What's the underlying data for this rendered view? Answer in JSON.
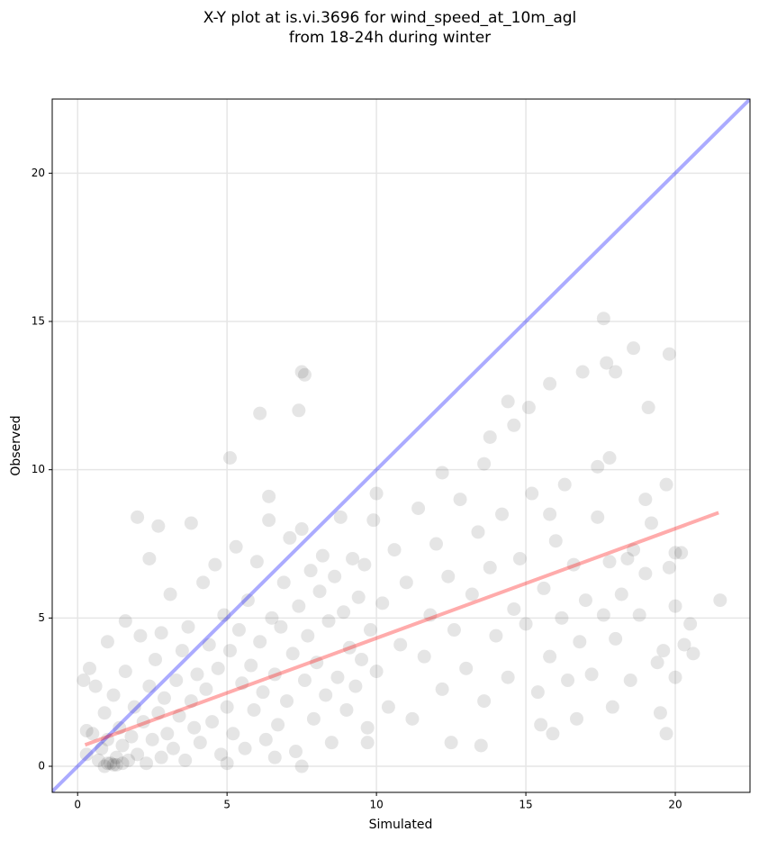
{
  "chart_data": {
    "type": "scatter",
    "title": [
      "X-Y plot at is.vi.3696 for wind_speed_at_10m_agl",
      "from 18-24h during winter"
    ],
    "xlabel": "Simulated",
    "ylabel": "Observed",
    "xlim": [
      -0.85,
      22.5
    ],
    "ylim": [
      -0.88,
      22.5
    ],
    "xticks": [
      0,
      5,
      10,
      15,
      20
    ],
    "yticks": [
      0,
      5,
      10,
      15,
      20
    ],
    "grid": true,
    "color": "#000000",
    "x": [
      0.3,
      0.5,
      0.7,
      0.8,
      0.9,
      1.0,
      1.1,
      1.2,
      1.3,
      1.4,
      1.5,
      1.6,
      1.7,
      1.8,
      1.9,
      2.0,
      2.1,
      2.2,
      2.3,
      2.4,
      2.5,
      2.6,
      2.7,
      2.8,
      2.9,
      3.0,
      3.1,
      3.2,
      3.3,
      3.4,
      3.5,
      3.6,
      3.7,
      3.8,
      3.9,
      4.0,
      0.2,
      0.4,
      0.6,
      1.0,
      1.6,
      2.8,
      0.3,
      1.2,
      0.9,
      4.1,
      4.2,
      4.3,
      4.4,
      4.5,
      4.6,
      4.7,
      4.8,
      4.9,
      5.0,
      5.1,
      5.2,
      5.3,
      5.4,
      5.5,
      5.6,
      5.7,
      5.8,
      5.9,
      6.0,
      6.1,
      6.2,
      6.3,
      6.4,
      6.5,
      6.6,
      6.7,
      6.8,
      6.9,
      7.0,
      7.1,
      7.2,
      7.3,
      7.4,
      7.5,
      7.6,
      7.7,
      7.8,
      7.9,
      8.0,
      8.1,
      8.2,
      8.3,
      8.4,
      8.5,
      8.6,
      8.7,
      8.8,
      8.9,
      9.0,
      9.1,
      9.2,
      9.3,
      9.4,
      9.5,
      9.6,
      9.7,
      9.8,
      9.9,
      10.0,
      10.2,
      10.4,
      10.6,
      10.8,
      11.0,
      11.2,
      11.4,
      11.6,
      11.8,
      12.0,
      12.2,
      12.4,
      12.6,
      12.8,
      13.0,
      13.2,
      13.4,
      13.6,
      13.8,
      14.0,
      14.2,
      14.4,
      14.6,
      14.8,
      15.0,
      15.2,
      15.4,
      15.6,
      15.8,
      16.0,
      16.2,
      16.4,
      16.6,
      16.8,
      17.0,
      17.2,
      17.4,
      17.6,
      17.8,
      18.0,
      18.2,
      18.4,
      18.8,
      19.0,
      19.4,
      19.6,
      19.8,
      20.0,
      20.0,
      20.2,
      20.5,
      19.2,
      18.5,
      7.5,
      7.6,
      6.1,
      7.4,
      5.1,
      17.6,
      18.6,
      19.8,
      16.9,
      17.7,
      18.0,
      15.8,
      14.4,
      15.1,
      19.1,
      21.5,
      20.6,
      20.3,
      19.7,
      19.5,
      17.9,
      2.0,
      2.7,
      3.8,
      2.4,
      6.4,
      10.0,
      14.6,
      13.8,
      12.2,
      13.6,
      17.4,
      17.8,
      20.0,
      19.7,
      19.0,
      18.6,
      16.3,
      15.8,
      16.7,
      15.9,
      15.5,
      12.5,
      13.5,
      9.7,
      7.5,
      6.6,
      5.0,
      1.0,
      1.3,
      1.5
    ],
    "values": [
      0.4,
      1.1,
      0.2,
      0.6,
      1.8,
      0.9,
      0.1,
      2.4,
      0.3,
      1.3,
      0.7,
      3.2,
      0.2,
      1.0,
      2.0,
      0.4,
      4.4,
      1.5,
      0.1,
      2.7,
      0.9,
      3.6,
      1.8,
      0.3,
      2.3,
      1.1,
      5.8,
      0.6,
      2.9,
      1.7,
      3.9,
      0.2,
      4.7,
      2.2,
      1.3,
      3.1,
      2.9,
      3.3,
      2.7,
      4.2,
      4.9,
      4.5,
      1.2,
      0.05,
      0.0,
      0.8,
      6.2,
      2.6,
      4.1,
      1.5,
      6.8,
      3.3,
      0.4,
      5.1,
      2.0,
      3.9,
      1.1,
      7.4,
      4.6,
      2.8,
      0.6,
      5.6,
      3.4,
      1.9,
      6.9,
      4.2,
      2.5,
      0.9,
      8.3,
      5.0,
      3.1,
      1.4,
      4.7,
      6.2,
      2.2,
      7.7,
      3.8,
      0.5,
      5.4,
      8.0,
      2.9,
      4.4,
      6.6,
      1.6,
      3.5,
      5.9,
      7.1,
      2.4,
      4.9,
      0.8,
      6.4,
      3.0,
      8.4,
      5.2,
      1.9,
      4.0,
      7.0,
      2.7,
      5.7,
      3.6,
      6.8,
      1.3,
      4.6,
      8.3,
      3.2,
      5.5,
      2.0,
      7.3,
      4.1,
      6.2,
      1.6,
      8.7,
      3.7,
      5.1,
      7.5,
      2.6,
      6.4,
      4.6,
      9.0,
      3.3,
      5.8,
      7.9,
      2.2,
      6.7,
      4.4,
      8.5,
      3.0,
      5.3,
      7.0,
      4.8,
      9.2,
      2.5,
      6.0,
      3.7,
      7.6,
      5.0,
      2.9,
      6.8,
      4.2,
      5.6,
      3.1,
      8.4,
      5.1,
      6.9,
      4.3,
      5.8,
      7.0,
      5.1,
      6.5,
      3.5,
      3.9,
      6.7,
      5.4,
      3.0,
      7.2,
      4.8,
      8.2,
      2.9,
      13.3,
      13.2,
      11.9,
      12.0,
      10.4,
      15.1,
      14.1,
      13.9,
      13.3,
      13.6,
      13.3,
      12.9,
      12.3,
      12.1,
      12.1,
      5.6,
      3.8,
      4.1,
      1.1,
      1.8,
      2.0,
      8.4,
      8.1,
      8.2,
      7.0,
      9.1,
      9.2,
      11.5,
      11.1,
      9.9,
      10.2,
      10.1,
      10.4,
      7.2,
      9.5,
      9.0,
      7.3,
      9.5,
      8.5,
      1.6,
      1.1,
      1.4,
      0.8,
      0.7,
      0.8,
      0.0,
      0.3,
      0.1,
      0.1,
      0.05,
      0.1
    ],
    "lines": [
      {
        "color": "#0000ff",
        "x": [
          -0.85,
          22.5
        ],
        "values": [
          -0.85,
          22.5
        ]
      },
      {
        "color": "#ff0000",
        "x": [
          0.25,
          21.45
        ],
        "values": [
          0.72,
          8.55
        ]
      }
    ]
  }
}
